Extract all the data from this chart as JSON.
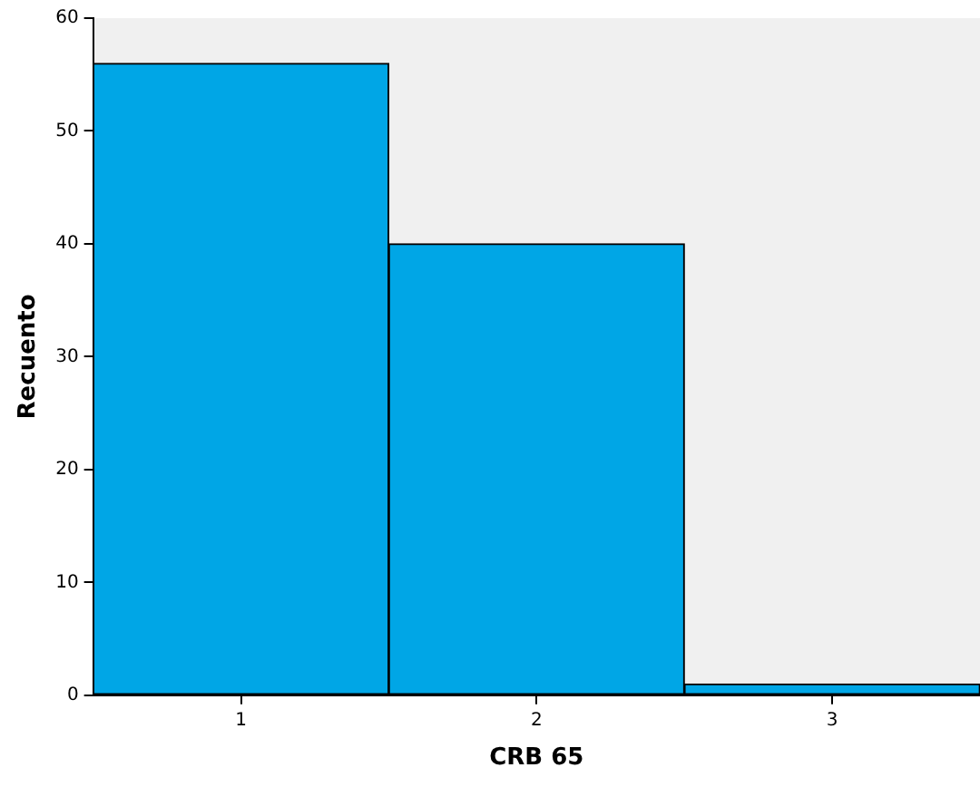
{
  "chart_data": {
    "type": "bar",
    "xlabel": "CRB 65",
    "ylabel": "Recuento",
    "categories": [
      "1",
      "2",
      "3"
    ],
    "values": [
      56,
      40,
      1
    ],
    "color": "#00a6e6",
    "ylim": [
      0,
      60
    ],
    "yticks": [
      0,
      10,
      20,
      30,
      40,
      50,
      60
    ],
    "grid": false,
    "legend": false
  }
}
